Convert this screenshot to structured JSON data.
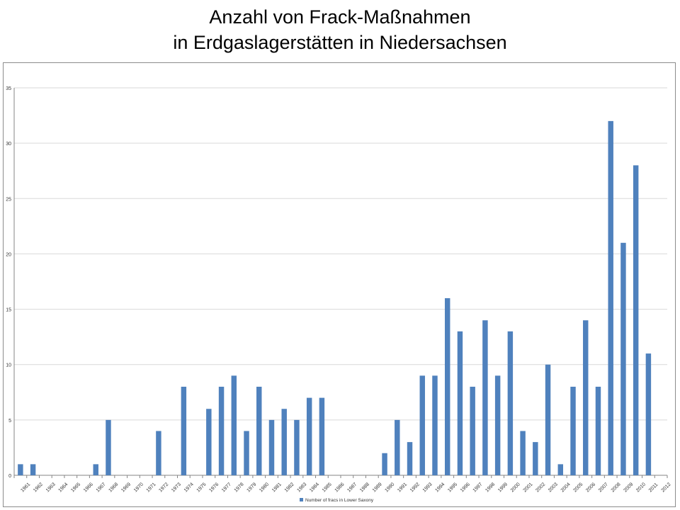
{
  "slide": {
    "title_line1": "Anzahl von Frack-Maßnahmen",
    "title_line2": "in Erdgaslagerstätten in Niedersachsen"
  },
  "chart_data": {
    "type": "bar",
    "categories": [
      "1961",
      "1962",
      "1963",
      "1964",
      "1965",
      "1966",
      "1967",
      "1968",
      "1969",
      "1970",
      "1971",
      "1972",
      "1973",
      "1974",
      "1975",
      "1976",
      "1977",
      "1978",
      "1979",
      "1980",
      "1981",
      "1982",
      "1983",
      "1984",
      "1985",
      "1986",
      "1987",
      "1988",
      "1989",
      "1990",
      "1991",
      "1992",
      "1993",
      "1994",
      "1995",
      "1996",
      "1997",
      "1998",
      "1999",
      "2000",
      "2001",
      "2002",
      "2003",
      "2004",
      "2005",
      "2006",
      "2007",
      "2008",
      "2009",
      "2010",
      "2011",
      "2012"
    ],
    "series": [
      {
        "name": "Number of fracs in Lower Saxony",
        "values": [
          1,
          1,
          0,
          0,
          0,
          0,
          1,
          5,
          0,
          0,
          0,
          4,
          0,
          8,
          0,
          6,
          8,
          9,
          4,
          8,
          5,
          6,
          5,
          7,
          7,
          0,
          0,
          0,
          0,
          2,
          5,
          3,
          9,
          9,
          16,
          13,
          8,
          14,
          9,
          13,
          4,
          3,
          10,
          1,
          8,
          14,
          8,
          32,
          21,
          28,
          11,
          0
        ]
      }
    ],
    "yticks": [
      "0",
      "5",
      "10",
      "15",
      "20",
      "25",
      "30",
      "35"
    ],
    "ylim": [
      0,
      35
    ],
    "grid": true,
    "legend": "bottom",
    "colors": {
      "bar": "#4f81bd",
      "grid": "#d9d9d9",
      "axis": "#868686"
    }
  }
}
